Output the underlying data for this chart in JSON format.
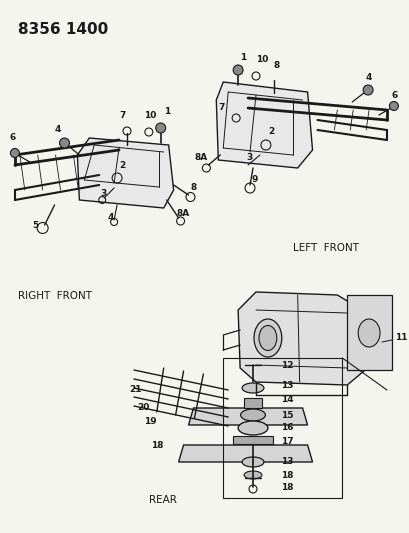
{
  "title_code": "8356 1400",
  "bg_color": "#f5f5f0",
  "line_color": "#1a1a1a",
  "text_color": "#1a1a1a",
  "labels": {
    "left_front": "LEFT  FRONT",
    "right_front": "RIGHT  FRONT",
    "rear": "REAR"
  },
  "figsize": [
    4.1,
    5.33
  ],
  "dpi": 100
}
